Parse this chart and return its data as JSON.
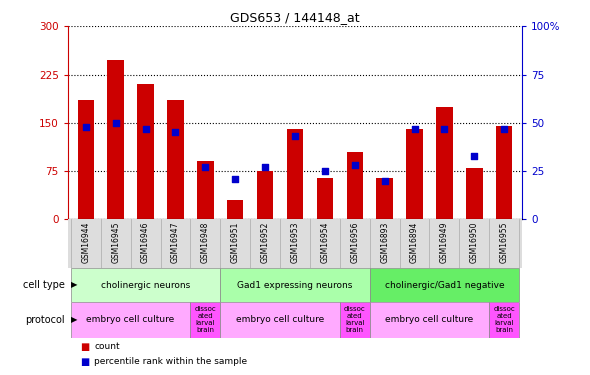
{
  "title": "GDS653 / 144148_at",
  "samples": [
    "GSM16944",
    "GSM16945",
    "GSM16946",
    "GSM16947",
    "GSM16948",
    "GSM16951",
    "GSM16952",
    "GSM16953",
    "GSM16954",
    "GSM16956",
    "GSM16893",
    "GSM16894",
    "GSM16949",
    "GSM16950",
    "GSM16955"
  ],
  "counts": [
    185,
    248,
    210,
    185,
    90,
    30,
    75,
    140,
    65,
    105,
    65,
    140,
    175,
    80,
    145
  ],
  "percentiles": [
    48,
    50,
    47,
    45,
    27,
    21,
    27,
    43,
    25,
    28,
    20,
    47,
    47,
    33,
    47
  ],
  "ylim_left": [
    0,
    300
  ],
  "ylim_right": [
    0,
    100
  ],
  "yticks_left": [
    0,
    75,
    150,
    225,
    300
  ],
  "yticks_right": [
    0,
    25,
    50,
    75,
    100
  ],
  "bar_color": "#cc0000",
  "dot_color": "#0000cc",
  "cell_type_groups": [
    {
      "label": "cholinergic neurons",
      "start": 0,
      "end": 4,
      "color": "#ccffcc"
    },
    {
      "label": "Gad1 expressing neurons",
      "start": 5,
      "end": 9,
      "color": "#aaffaa"
    },
    {
      "label": "cholinergic/Gad1 negative",
      "start": 10,
      "end": 14,
      "color": "#66ee66"
    }
  ],
  "protocol_groups": [
    {
      "label": "embryo cell culture",
      "start": 0,
      "end": 3,
      "color": "#ffaaff"
    },
    {
      "label": "dissoc\nated\nlarval\nbrain",
      "start": 4,
      "end": 4,
      "color": "#ff66ff"
    },
    {
      "label": "embryo cell culture",
      "start": 5,
      "end": 8,
      "color": "#ffaaff"
    },
    {
      "label": "dissoc\nated\nlarval\nbrain",
      "start": 9,
      "end": 9,
      "color": "#ff66ff"
    },
    {
      "label": "embryo cell culture",
      "start": 10,
      "end": 13,
      "color": "#ffaaff"
    },
    {
      "label": "dissoc\nated\nlarval\nbrain",
      "start": 14,
      "end": 14,
      "color": "#ff66ff"
    }
  ],
  "background_color": "#ffffff",
  "plot_bg_color": "#ffffff",
  "grid_color": "#000000",
  "tick_label_color_left": "#cc0000",
  "tick_label_color_right": "#0000cc",
  "bar_width": 0.55
}
